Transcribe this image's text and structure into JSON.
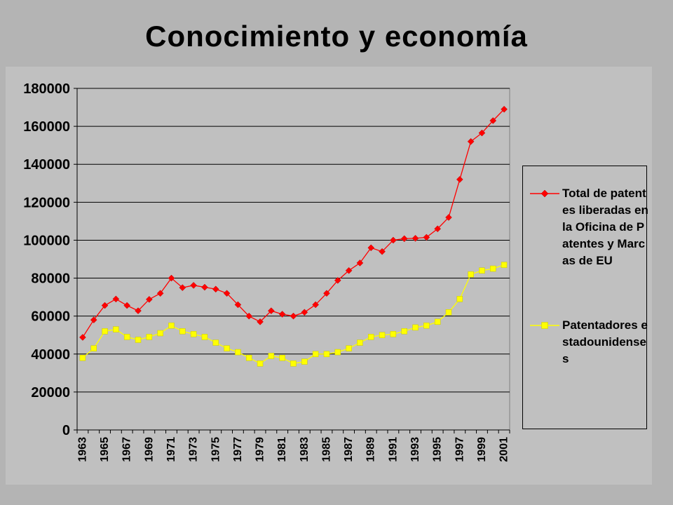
{
  "slide": {
    "title": "Conocimiento y economía"
  },
  "colors": {
    "total": "#ff0000",
    "us": "#ffff00",
    "plot_bg": "#c0c0c0",
    "grid": "#000000"
  },
  "legend": {
    "total_label": "Total de patentes liberadas en la Oficina de Patentes y Marcas de EU",
    "us_label": "Patentadores estadounidenses"
  },
  "chart_data": {
    "type": "line",
    "title": "",
    "xlabel": "",
    "ylabel": "",
    "ylim": [
      0,
      180000
    ],
    "yticks": [
      0,
      20000,
      40000,
      60000,
      80000,
      100000,
      120000,
      140000,
      160000,
      180000
    ],
    "x": [
      1963,
      1964,
      1965,
      1966,
      1967,
      1968,
      1969,
      1970,
      1971,
      1972,
      1973,
      1974,
      1975,
      1976,
      1977,
      1978,
      1979,
      1980,
      1981,
      1982,
      1983,
      1984,
      1985,
      1986,
      1987,
      1988,
      1989,
      1990,
      1991,
      1992,
      1993,
      1994,
      1995,
      1996,
      1997,
      1998,
      1999,
      2000,
      2001
    ],
    "xticks": [
      1963,
      1965,
      1967,
      1969,
      1971,
      1973,
      1975,
      1977,
      1979,
      1981,
      1983,
      1985,
      1987,
      1989,
      1991,
      1993,
      1995,
      1997,
      1999,
      2001
    ],
    "grid": "horizontal",
    "legend_position": "right",
    "series": [
      {
        "name": "Total de patentes liberadas en la Oficina de Patentes y Marcas de EU",
        "marker": "diamond",
        "values": [
          48800,
          58000,
          65600,
          69000,
          65600,
          62800,
          68800,
          72000,
          80000,
          75000,
          76200,
          75200,
          74200,
          72000,
          66000,
          60000,
          57000,
          62800,
          61000,
          60000,
          62000,
          66000,
          72000,
          78800,
          84000,
          88000,
          96000,
          94000,
          100000,
          100800,
          101000,
          101500,
          106000,
          112000,
          132000,
          152000,
          156500,
          163000,
          169000
        ]
      },
      {
        "name": "Patentadores estadounidenses",
        "marker": "square",
        "values": [
          38000,
          43000,
          52000,
          53000,
          49000,
          47500,
          49000,
          51000,
          55000,
          52000,
          50500,
          49000,
          46000,
          43000,
          41000,
          38000,
          35000,
          39000,
          38000,
          35000,
          36000,
          40000,
          40000,
          41000,
          43000,
          46000,
          49000,
          50000,
          50500,
          52000,
          54000,
          55000,
          57000,
          62000,
          69000,
          82000,
          84000,
          85000,
          87000
        ]
      }
    ]
  }
}
